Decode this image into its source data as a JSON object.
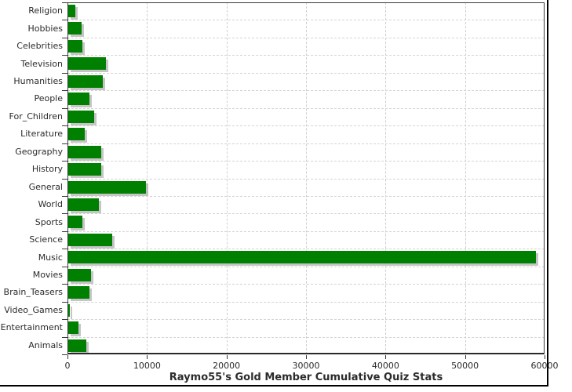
{
  "chart_data": {
    "type": "bar",
    "orientation": "horizontal",
    "title": "Raymo55's Gold Member Cumulative Quiz Stats",
    "categories": [
      "Religion",
      "Hobbies",
      "Celebrities",
      "Television",
      "Humanities",
      "People",
      "For_Children",
      "Literature",
      "Geography",
      "History",
      "General",
      "World",
      "Sports",
      "Science",
      "Music",
      "Movies",
      "Brain_Teasers",
      "Video_Games",
      "Entertainment",
      "Animals"
    ],
    "values": [
      850,
      1650,
      1800,
      4700,
      4350,
      2650,
      3250,
      2050,
      4100,
      4150,
      9800,
      3800,
      1800,
      5550,
      58800,
      2900,
      2650,
      200,
      1300,
      2300
    ],
    "xlim": [
      0,
      60000
    ],
    "x_ticks": [
      0,
      10000,
      20000,
      30000,
      40000,
      50000,
      60000
    ],
    "grid": true,
    "legend": "none",
    "bar_color": "#008000",
    "bar_shadow_color": "#969696",
    "grid_color": "#d4d4d4",
    "axis_color": "#3a3a3a",
    "text_color": "#2b2b2b",
    "background_color": "#ffffff",
    "frame_border_color": "#000000"
  }
}
